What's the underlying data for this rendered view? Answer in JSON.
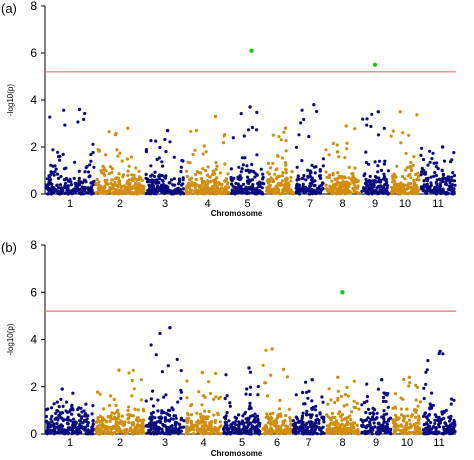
{
  "chart_data": [
    {
      "type": "scatter",
      "panel_label": "(a)",
      "xlabel": "Chromosome",
      "ylabel": "-log10(p)",
      "ylim": [
        0,
        8
      ],
      "yticks": [
        0,
        2,
        4,
        6,
        8
      ],
      "threshold": 5.2,
      "threshold_color": "#ff6b6b",
      "chromosomes": [
        "1",
        "2",
        "3",
        "4",
        "5",
        "6",
        "7",
        "8",
        "9",
        "10",
        "11"
      ],
      "chromosome_colors": [
        "#0a0a80",
        "#d18d0c"
      ],
      "chromosome_max_values": [
        3.6,
        2.8,
        2.7,
        3.3,
        3.7,
        2.8,
        3.8,
        2.9,
        3.5,
        3.5,
        2.0
      ],
      "significant_points": [
        {
          "chromosome": "5",
          "value": 6.1,
          "color": "#1ec41e"
        },
        {
          "chromosome": "9",
          "value": 5.5,
          "color": "#1ec41e"
        }
      ]
    },
    {
      "type": "scatter",
      "panel_label": "(b)",
      "xlabel": "Chromosome",
      "ylabel": "-log10(p)",
      "ylim": [
        0,
        8
      ],
      "yticks": [
        0,
        2,
        4,
        6,
        8
      ],
      "threshold": 5.2,
      "threshold_color": "#ff6b6b",
      "chromosomes": [
        "1",
        "2",
        "3",
        "4",
        "5",
        "6",
        "7",
        "8",
        "9",
        "10",
        "11"
      ],
      "chromosome_colors": [
        "#0a0a80",
        "#d18d0c"
      ],
      "chromosome_max_values": [
        1.9,
        2.7,
        4.5,
        2.6,
        2.8,
        3.6,
        2.3,
        2.4,
        2.3,
        2.4,
        3.5
      ],
      "significant_points": [
        {
          "chromosome": "8",
          "value": 6.0,
          "color": "#1ec41e"
        }
      ]
    }
  ]
}
